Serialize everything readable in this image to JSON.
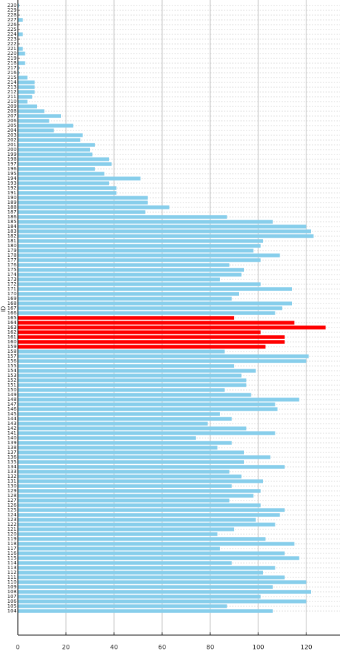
{
  "chart_data": {
    "type": "barh",
    "ylabel": "ID",
    "categories": [
      104,
      105,
      106,
      107,
      108,
      109,
      110,
      111,
      112,
      113,
      114,
      115,
      116,
      117,
      118,
      119,
      120,
      121,
      122,
      123,
      124,
      125,
      126,
      127,
      128,
      129,
      130,
      131,
      132,
      133,
      134,
      135,
      136,
      137,
      138,
      139,
      140,
      141,
      142,
      143,
      144,
      145,
      146,
      147,
      148,
      149,
      150,
      151,
      152,
      153,
      154,
      155,
      156,
      157,
      158,
      159,
      160,
      161,
      162,
      163,
      164,
      165,
      166,
      167,
      168,
      169,
      170,
      171,
      172,
      173,
      174,
      175,
      176,
      177,
      178,
      179,
      180,
      181,
      182,
      183,
      184,
      185,
      186,
      187,
      188,
      189,
      190,
      191,
      192,
      193,
      194,
      195,
      196,
      197,
      198,
      199,
      200,
      201,
      202,
      203,
      204,
      205,
      206,
      207,
      208,
      209,
      210,
      211,
      212,
      213,
      214,
      215,
      216,
      217,
      218,
      219,
      220,
      221,
      222,
      223,
      224,
      225,
      226,
      227,
      228,
      229,
      230
    ],
    "values": [
      106,
      87,
      120,
      101,
      122,
      106,
      120,
      111,
      102,
      107,
      89,
      117,
      111,
      84,
      115,
      103,
      83,
      90,
      107,
      99,
      109,
      111,
      101,
      88,
      98,
      101,
      89,
      102,
      93,
      88,
      111,
      94,
      105,
      94,
      83,
      89,
      74,
      107,
      95,
      79,
      89,
      84,
      108,
      107,
      117,
      97,
      86,
      95,
      95,
      93,
      99,
      90,
      120,
      121,
      86,
      103,
      111,
      111,
      101,
      128,
      115,
      90,
      107,
      110,
      114,
      89,
      92,
      114,
      101,
      84,
      93,
      94,
      88,
      101,
      109,
      98,
      101,
      102,
      123,
      122,
      120,
      106,
      87,
      53,
      63,
      54,
      54,
      41,
      41,
      38,
      51,
      36,
      32,
      39,
      38,
      31,
      30,
      32,
      26,
      27,
      15,
      23,
      13,
      18,
      11,
      8,
      4,
      6,
      7,
      7,
      7,
      4,
      0.5,
      0.5,
      3,
      0,
      3,
      2,
      0,
      0,
      2,
      0,
      0,
      2,
      0,
      0,
      0.5
    ],
    "colors": [
      "#87ceeb",
      "#87ceeb",
      "#87ceeb",
      "#87ceeb",
      "#87ceeb",
      "#87ceeb",
      "#87ceeb",
      "#87ceeb",
      "#87ceeb",
      "#87ceeb",
      "#87ceeb",
      "#87ceeb",
      "#87ceeb",
      "#87ceeb",
      "#87ceeb",
      "#87ceeb",
      "#87ceeb",
      "#87ceeb",
      "#87ceeb",
      "#87ceeb",
      "#87ceeb",
      "#87ceeb",
      "#87ceeb",
      "#87ceeb",
      "#87ceeb",
      "#87ceeb",
      "#87ceeb",
      "#87ceeb",
      "#87ceeb",
      "#87ceeb",
      "#87ceeb",
      "#87ceeb",
      "#87ceeb",
      "#87ceeb",
      "#87ceeb",
      "#87ceeb",
      "#87ceeb",
      "#87ceeb",
      "#87ceeb",
      "#87ceeb",
      "#87ceeb",
      "#87ceeb",
      "#87ceeb",
      "#87ceeb",
      "#87ceeb",
      "#87ceeb",
      "#87ceeb",
      "#87ceeb",
      "#87ceeb",
      "#87ceeb",
      "#87ceeb",
      "#87ceeb",
      "#87ceeb",
      "#87ceeb",
      "#87ceeb",
      "#ff0000",
      "#ff0000",
      "#ff0000",
      "#ff0000",
      "#ff0000",
      "#ff0000",
      "#ff0000",
      "#87ceeb",
      "#87ceeb",
      "#87ceeb",
      "#87ceeb",
      "#87ceeb",
      "#87ceeb",
      "#87ceeb",
      "#87ceeb",
      "#87ceeb",
      "#87ceeb",
      "#87ceeb",
      "#87ceeb",
      "#87ceeb",
      "#87ceeb",
      "#87ceeb",
      "#87ceeb",
      "#87ceeb",
      "#87ceeb",
      "#87ceeb",
      "#87ceeb",
      "#87ceeb",
      "#87ceeb",
      "#87ceeb",
      "#87ceeb",
      "#87ceeb",
      "#87ceeb",
      "#87ceeb",
      "#87ceeb",
      "#87ceeb",
      "#87ceeb",
      "#87ceeb",
      "#87ceeb",
      "#87ceeb",
      "#87ceeb",
      "#87ceeb",
      "#87ceeb",
      "#87ceeb",
      "#87ceeb",
      "#87ceeb",
      "#87ceeb",
      "#87ceeb",
      "#87ceeb",
      "#87ceeb",
      "#87ceeb",
      "#87ceeb",
      "#87ceeb",
      "#87ceeb",
      "#87ceeb",
      "#87ceeb",
      "#87ceeb",
      "#87ceeb",
      "#87ceeb",
      "#87ceeb",
      "#87ceeb",
      "#87ceeb",
      "#87ceeb",
      "#87ceeb",
      "#87ceeb",
      "#87ceeb",
      "#87ceeb",
      "#87ceeb",
      "#87ceeb",
      "#87ceeb",
      "#87ceeb",
      "#87ceeb"
    ],
    "xlim": [
      0,
      134
    ],
    "xticks": [
      0,
      20,
      40,
      60,
      80,
      100,
      120
    ],
    "grid": true
  }
}
